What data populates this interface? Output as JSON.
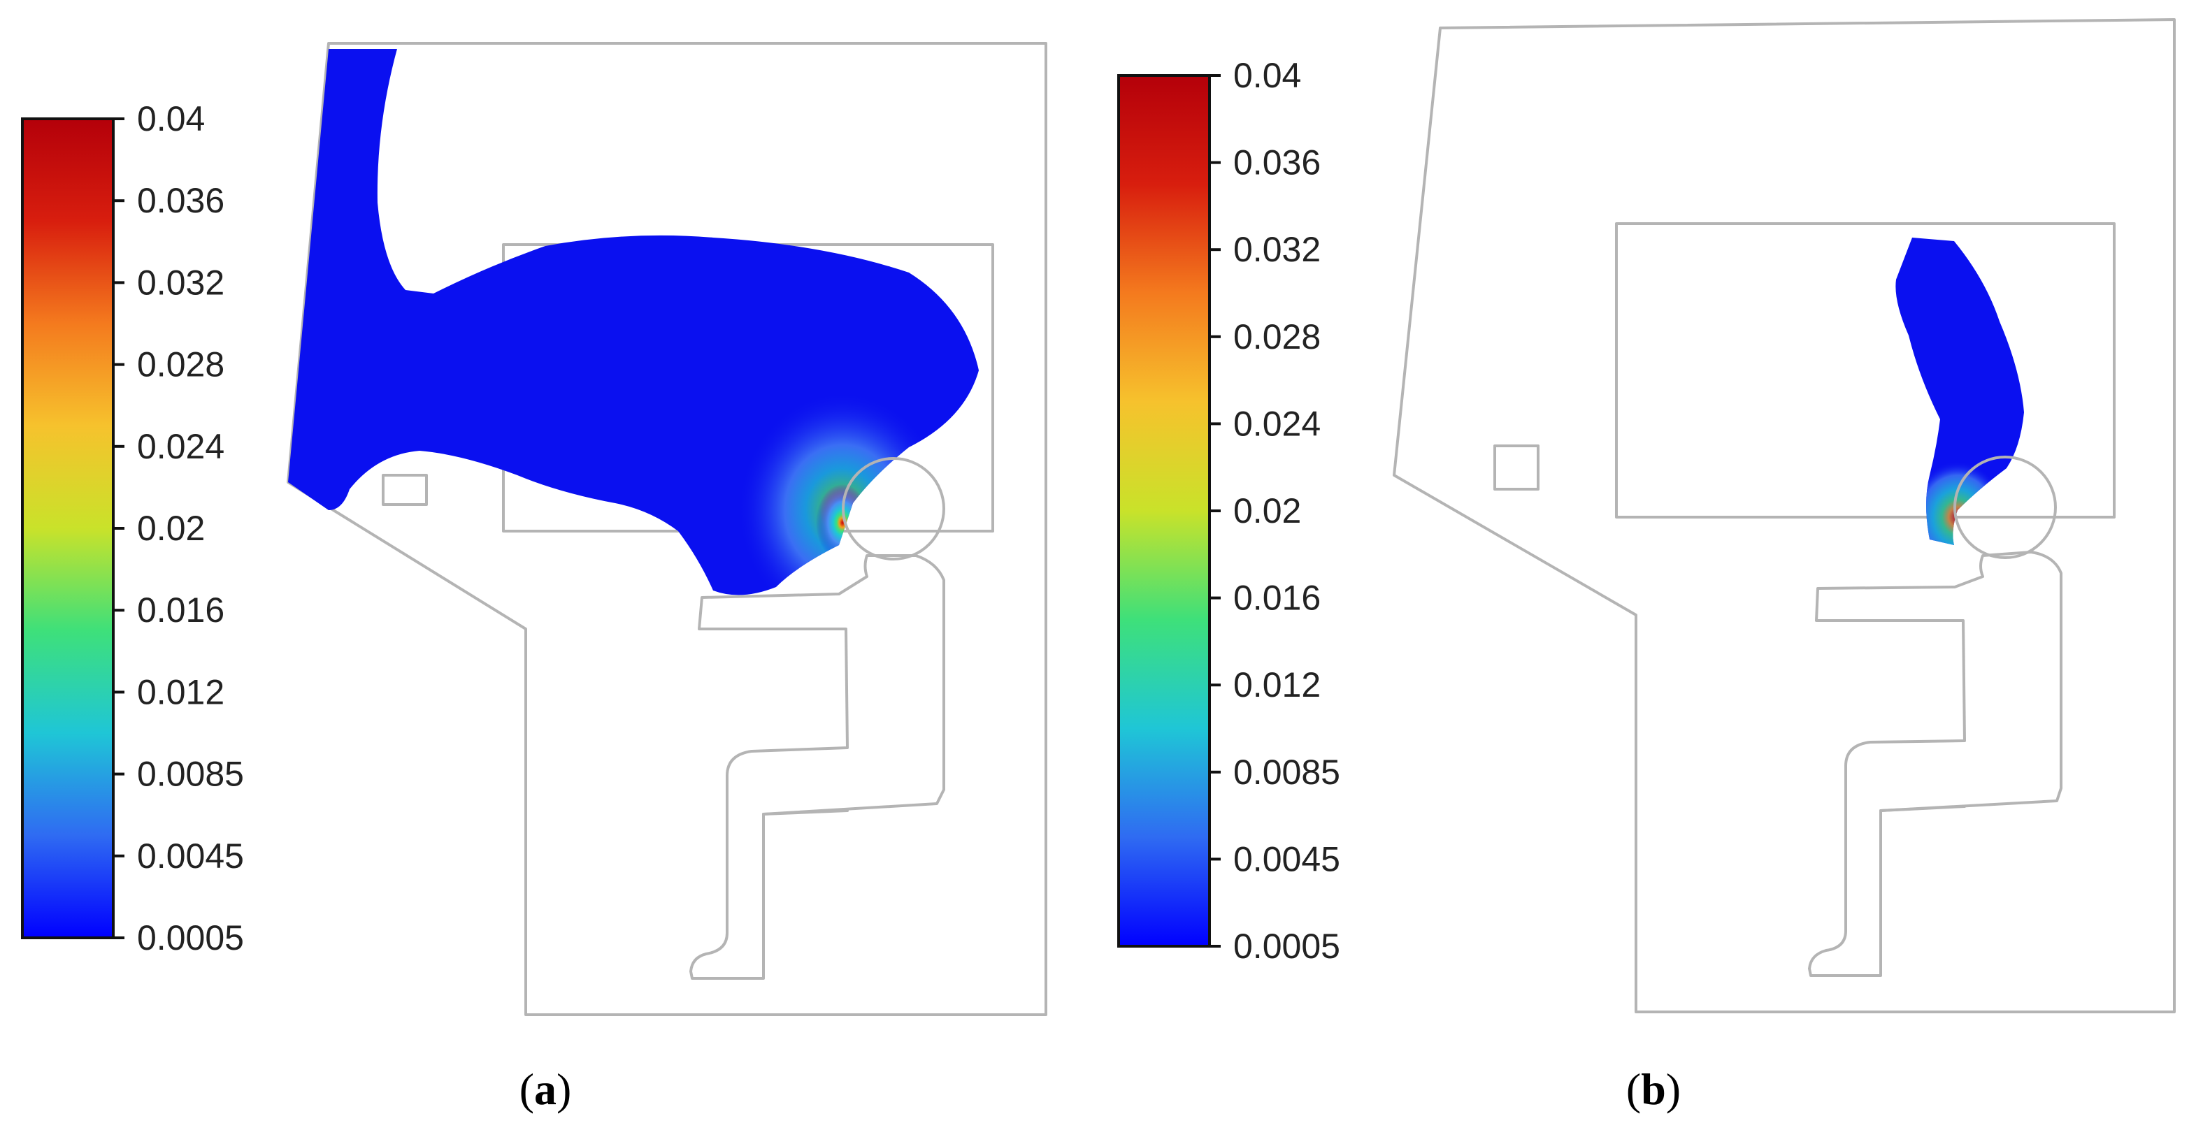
{
  "colors": {
    "scale": [
      "#0000ff",
      "#2f6bf2",
      "#1fc6d6",
      "#3ee07a",
      "#c9e22a",
      "#f6c22d",
      "#f47a1e",
      "#d81e0e",
      "#b4000a"
    ],
    "plume": "#0a10f0",
    "outline": "#b4b4b4"
  },
  "panels": [
    {
      "id": "a",
      "label_open": "(",
      "label_letter": "a",
      "label_close": ")",
      "colorbar_ticks": [
        "0.04",
        "0.036",
        "0.032",
        "0.028",
        "0.024",
        "0.02",
        "0.016",
        "0.012",
        "0.0085",
        "0.0045",
        "0.0005"
      ]
    },
    {
      "id": "b",
      "label_open": "(",
      "label_letter": "b",
      "label_close": ")",
      "colorbar_ticks": [
        "0.04",
        "0.036",
        "0.032",
        "0.028",
        "0.024",
        "0.02",
        "0.016",
        "0.012",
        "0.0085",
        "0.0045",
        "0.0005"
      ]
    }
  ]
}
